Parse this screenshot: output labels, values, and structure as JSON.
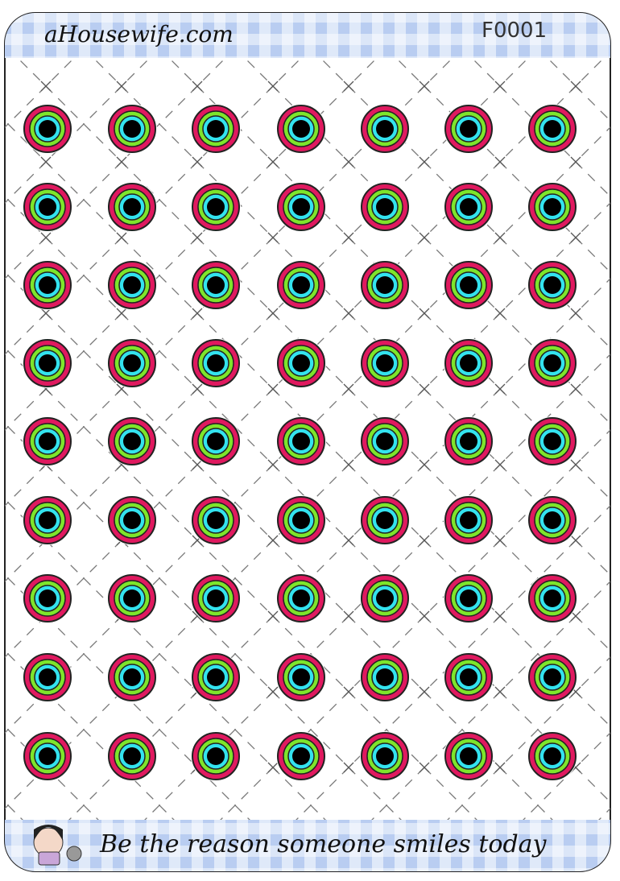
{
  "header": {
    "site": "aHousewife.com",
    "code": "F0001"
  },
  "footer": {
    "slogan": "Be the reason someone smiles today"
  }
}
